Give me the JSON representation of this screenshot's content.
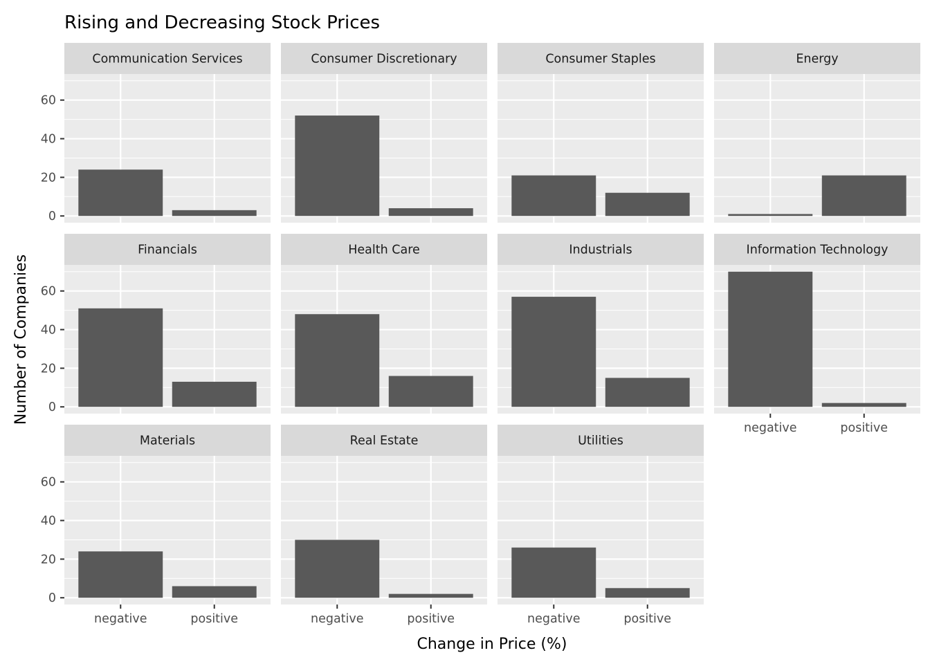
{
  "chart_data": {
    "type": "bar",
    "title": "Rising and Decreasing Stock Prices",
    "xlabel": "Change in Price (%)",
    "ylabel": "Number of Companies",
    "categories": [
      "negative",
      "positive"
    ],
    "ylim": [
      0,
      70
    ],
    "yticks": [
      0,
      20,
      40,
      60
    ],
    "grid": true,
    "bar_color": "#595959",
    "panel_background": "#ebebeb",
    "strip_background": "#d9d9d9",
    "facets": [
      {
        "name": "Communication Services",
        "values": [
          24,
          3
        ]
      },
      {
        "name": "Consumer Discretionary",
        "values": [
          52,
          4
        ]
      },
      {
        "name": "Consumer Staples",
        "values": [
          21,
          12
        ]
      },
      {
        "name": "Energy",
        "values": [
          1,
          21
        ]
      },
      {
        "name": "Financials",
        "values": [
          51,
          13
        ]
      },
      {
        "name": "Health Care",
        "values": [
          48,
          16
        ]
      },
      {
        "name": "Industrials",
        "values": [
          57,
          15
        ]
      },
      {
        "name": "Information Technology",
        "values": [
          70,
          2
        ]
      },
      {
        "name": "Materials",
        "values": [
          24,
          6
        ]
      },
      {
        "name": "Real Estate",
        "values": [
          30,
          2
        ]
      },
      {
        "name": "Utilities",
        "values": [
          26,
          5
        ]
      }
    ]
  }
}
